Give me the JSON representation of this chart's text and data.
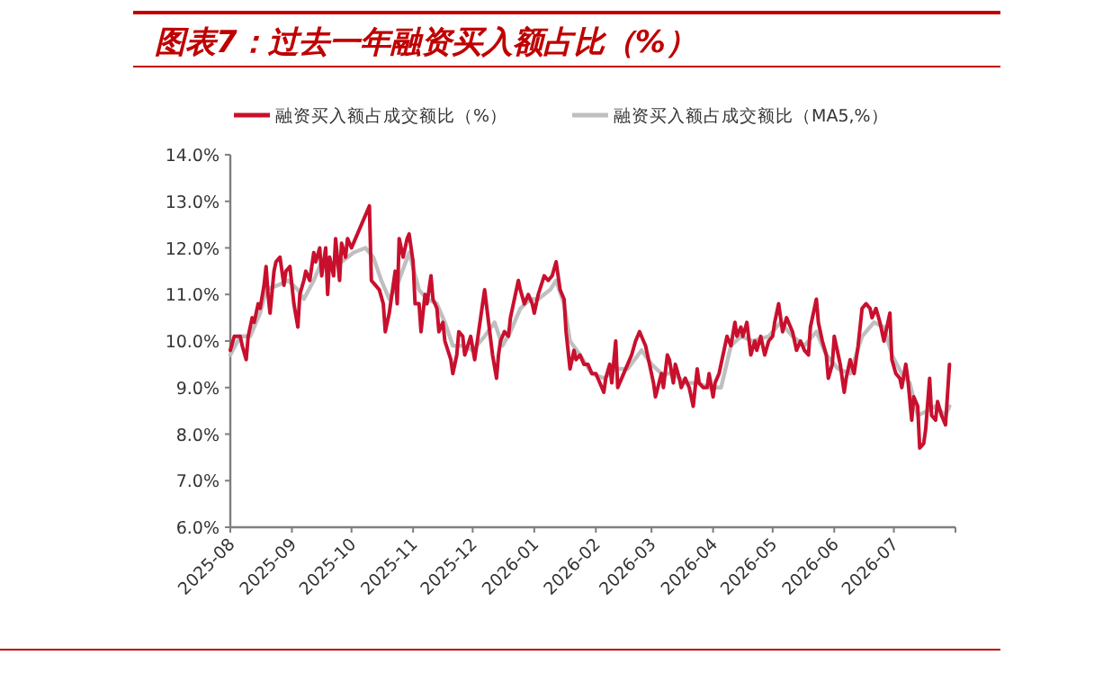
{
  "chart_data": {
    "type": "line",
    "title": "图表7：过去一年融资买入额占比（%）",
    "legend": "top",
    "line_style": "solid",
    "xlim": [
      "2025-08-01",
      "2026-08-01"
    ],
    "xticks": [
      "2025-08",
      "2025-09",
      "2025-10",
      "2025-11",
      "2025-12",
      "2026-01",
      "2026-02",
      "2026-03",
      "2026-04",
      "2026-05",
      "2026-06",
      "2026-07"
    ],
    "ylim": [
      6,
      14
    ],
    "yticks": [
      {
        "value": 6,
        "label": "6.0%"
      },
      {
        "value": 7,
        "label": "7.0%"
      },
      {
        "value": 8,
        "label": "8.0%"
      },
      {
        "value": 9,
        "label": "9.0%"
      },
      {
        "value": 10,
        "label": "10.0%"
      },
      {
        "value": 11,
        "label": "11.0%"
      },
      {
        "value": 12,
        "label": "12.0%"
      },
      {
        "value": 13,
        "label": "13.0%"
      },
      {
        "value": 14,
        "label": "14.0%"
      }
    ],
    "series": [
      {
        "name": "融资买入额占成交额比（%）",
        "color": "#c8102e",
        "x": [
          "2025-08-01",
          "2025-08-03",
          "2025-08-06",
          "2025-08-07",
          "2025-08-09",
          "2025-08-10",
          "2025-08-12",
          "2025-08-13",
          "2025-08-15",
          "2025-08-16",
          "2025-08-18",
          "2025-08-19",
          "2025-08-20",
          "2025-08-21",
          "2025-08-23",
          "2025-08-24",
          "2025-08-26",
          "2025-08-28",
          "2025-08-29",
          "2025-08-31",
          "2025-09-02",
          "2025-09-04",
          "2025-09-05",
          "2025-09-07",
          "2025-09-08",
          "2025-09-10",
          "2025-09-12",
          "2025-09-13",
          "2025-09-15",
          "2025-09-16",
          "2025-09-18",
          "2025-09-19",
          "2025-09-20",
          "2025-09-22",
          "2025-09-23",
          "2025-09-25",
          "2025-09-26",
          "2025-09-28",
          "2025-09-29",
          "2025-10-01",
          "2025-10-03",
          "2025-10-06",
          "2025-10-10",
          "2025-10-11",
          "2025-10-13",
          "2025-10-15",
          "2025-10-17",
          "2025-10-18",
          "2025-10-20",
          "2025-10-21",
          "2025-10-23",
          "2025-10-24",
          "2025-10-25",
          "2025-10-27",
          "2025-10-29",
          "2025-10-30",
          "2025-11-01",
          "2025-11-02",
          "2025-11-04",
          "2025-11-05",
          "2025-11-07",
          "2025-11-08",
          "2025-11-10",
          "2025-11-11",
          "2025-11-13",
          "2025-11-14",
          "2025-11-16",
          "2025-11-17",
          "2025-11-20",
          "2025-11-21",
          "2025-11-23",
          "2025-11-24",
          "2025-11-26",
          "2025-11-27",
          "2025-11-30",
          "2025-12-02",
          "2025-12-04",
          "2025-12-06",
          "2025-12-07",
          "2025-12-09",
          "2025-12-11",
          "2025-12-13",
          "2025-12-14",
          "2025-12-15",
          "2025-12-17",
          "2025-12-19",
          "2025-12-20",
          "2025-12-22",
          "2025-12-24",
          "2025-12-25",
          "2025-12-27",
          "2025-12-29",
          "2025-12-31",
          "2026-01-01",
          "2026-01-03",
          "2026-01-06",
          "2026-01-08",
          "2026-01-10",
          "2026-01-12",
          "2026-01-14",
          "2026-01-16",
          "2026-01-17",
          "2026-01-19",
          "2026-01-21",
          "2026-01-22",
          "2026-01-24",
          "2026-01-26",
          "2026-01-28",
          "2026-01-30",
          "2026-02-01",
          "2026-02-03",
          "2026-02-05",
          "2026-02-06",
          "2026-02-08",
          "2026-02-09",
          "2026-02-11",
          "2026-02-12",
          "2026-02-14",
          "2026-02-17",
          "2026-02-19",
          "2026-02-21",
          "2026-02-23",
          "2026-02-26",
          "2026-02-28",
          "2026-03-02",
          "2026-03-03",
          "2026-03-06",
          "2026-03-07",
          "2026-03-09",
          "2026-03-10",
          "2026-03-12",
          "2026-03-13",
          "2026-03-15",
          "2026-03-16",
          "2026-03-18",
          "2026-03-20",
          "2026-03-22",
          "2026-03-24",
          "2026-03-25",
          "2026-03-27",
          "2026-03-29",
          "2026-03-30",
          "2026-04-01",
          "2026-04-02",
          "2026-04-04",
          "2026-04-06",
          "2026-04-08",
          "2026-04-10",
          "2026-04-12",
          "2026-04-13",
          "2026-04-15",
          "2026-04-16",
          "2026-04-18",
          "2026-04-20",
          "2026-04-22",
          "2026-04-23",
          "2026-04-25",
          "2026-04-27",
          "2026-04-29",
          "2026-05-01",
          "2026-05-02",
          "2026-05-04",
          "2026-05-06",
          "2026-05-08",
          "2026-05-09",
          "2026-05-11",
          "2026-05-13",
          "2026-05-15",
          "2026-05-17",
          "2026-05-19",
          "2026-05-20",
          "2026-05-23",
          "2026-05-24",
          "2026-05-26",
          "2026-05-28",
          "2026-05-29",
          "2026-05-31",
          "2026-06-01",
          "2026-06-03",
          "2026-06-04",
          "2026-06-06",
          "2026-06-07",
          "2026-06-09",
          "2026-06-11",
          "2026-06-13",
          "2026-06-15",
          "2026-06-17",
          "2026-06-19",
          "2026-06-20",
          "2026-06-22",
          "2026-06-24",
          "2026-06-26",
          "2026-06-27",
          "2026-06-29",
          "2026-06-30",
          "2026-07-02",
          "2026-07-04",
          "2026-07-05",
          "2026-07-07",
          "2026-07-08",
          "2026-07-10",
          "2026-07-11",
          "2026-07-13",
          "2026-07-14",
          "2026-07-16",
          "2026-07-17",
          "2026-07-19",
          "2026-07-20",
          "2026-07-22",
          "2026-07-23",
          "2026-07-25",
          "2026-07-26",
          "2026-07-27",
          "2026-07-29"
        ],
        "values": [
          9.8,
          10.1,
          10.1,
          9.9,
          9.6,
          10.1,
          10.5,
          10.4,
          10.8,
          10.7,
          11.2,
          11.6,
          11.0,
          10.6,
          11.5,
          11.7,
          11.8,
          11.2,
          11.5,
          11.6,
          10.8,
          10.3,
          11.0,
          11.3,
          11.5,
          11.3,
          11.9,
          11.7,
          12.0,
          11.4,
          12.0,
          11.0,
          11.8,
          11.4,
          12.2,
          11.3,
          12.1,
          11.8,
          12.2,
          12.0,
          12.2,
          12.5,
          12.9,
          11.3,
          11.2,
          11.1,
          10.8,
          10.2,
          10.6,
          10.9,
          11.5,
          10.8,
          12.2,
          11.8,
          12.2,
          12.3,
          11.7,
          10.8,
          10.8,
          10.2,
          11.0,
          10.8,
          11.4,
          10.9,
          10.7,
          10.2,
          10.4,
          10.0,
          9.6,
          9.3,
          9.7,
          10.2,
          10.1,
          9.7,
          10.1,
          9.6,
          10.2,
          10.8,
          11.1,
          10.4,
          9.7,
          9.2,
          9.7,
          10.0,
          10.2,
          10.1,
          10.5,
          10.9,
          11.3,
          11.1,
          10.8,
          11.0,
          10.8,
          10.6,
          11.0,
          11.4,
          11.3,
          11.4,
          11.7,
          11.1,
          10.9,
          10.2,
          9.4,
          9.8,
          9.6,
          9.7,
          9.5,
          9.5,
          9.3,
          9.3,
          9.1,
          8.9,
          9.2,
          9.5,
          9.1,
          10.0,
          9.0,
          9.2,
          9.5,
          9.7,
          10.0,
          10.2,
          9.9,
          9.5,
          9.1,
          8.8,
          9.3,
          9.0,
          9.7,
          9.6,
          9.1,
          9.5,
          9.2,
          9.0,
          9.2,
          9.0,
          8.6,
          9.4,
          9.1,
          9.0,
          9.0,
          9.3,
          8.8,
          9.1,
          9.3,
          9.7,
          10.1,
          9.9,
          10.4,
          10.1,
          10.3,
          10.1,
          10.4,
          9.7,
          10.0,
          9.8,
          10.1,
          9.7,
          10.0,
          10.1,
          10.4,
          10.8,
          10.2,
          10.5,
          10.4,
          10.2,
          9.8,
          10.0,
          9.8,
          9.7,
          10.3,
          10.9,
          10.4,
          10.0,
          9.7,
          9.2,
          9.5,
          10.1,
          9.7,
          9.5,
          8.9,
          9.2,
          9.6,
          9.3,
          9.9,
          10.7,
          10.8,
          10.7,
          10.5,
          10.7,
          10.4,
          10.0,
          10.2,
          10.6,
          9.6,
          9.3,
          9.2,
          9.0,
          9.5,
          9.2,
          8.3,
          8.8,
          8.6,
          7.7,
          7.8,
          8.1,
          9.2,
          8.4,
          8.3,
          8.7,
          8.4,
          8.3,
          8.2,
          9.5
        ]
      },
      {
        "name": "融资买入额占成交额比（MA5,%）",
        "color": "#bfbfbf",
        "x": [
          "2025-08-01",
          "2025-08-06",
          "2025-08-11",
          "2025-08-16",
          "2025-08-19",
          "2025-08-25",
          "2025-08-30",
          "2025-09-04",
          "2025-09-07",
          "2025-09-12",
          "2025-09-16",
          "2025-09-21",
          "2025-09-26",
          "2025-10-02",
          "2025-10-08",
          "2025-10-12",
          "2025-10-16",
          "2025-10-20",
          "2025-10-24",
          "2025-10-30",
          "2025-11-04",
          "2025-11-08",
          "2025-11-13",
          "2025-11-17",
          "2025-11-21",
          "2025-11-26",
          "2025-12-01",
          "2025-12-07",
          "2025-12-12",
          "2025-12-16",
          "2025-12-20",
          "2025-12-25",
          "2025-12-30",
          "2026-01-03",
          "2026-01-09",
          "2026-01-12",
          "2026-01-16",
          "2026-01-19",
          "2026-01-24",
          "2026-01-30",
          "2026-02-05",
          "2026-02-11",
          "2026-02-17",
          "2026-02-24",
          "2026-03-01",
          "2026-03-06",
          "2026-03-12",
          "2026-03-18",
          "2026-03-24",
          "2026-03-30",
          "2026-04-05",
          "2026-04-10",
          "2026-04-15",
          "2026-04-21",
          "2026-04-29",
          "2026-05-05",
          "2026-05-11",
          "2026-05-17",
          "2026-05-23",
          "2026-05-28",
          "2026-06-03",
          "2026-06-09",
          "2026-06-15",
          "2026-06-21",
          "2026-06-26",
          "2026-06-30",
          "2026-07-05",
          "2026-07-09",
          "2026-07-13",
          "2026-07-18",
          "2026-07-22",
          "2026-07-27",
          "2026-07-29"
        ],
        "values": [
          9.7,
          10.1,
          10.1,
          10.6,
          11.1,
          11.2,
          11.3,
          11.1,
          10.9,
          11.3,
          11.7,
          11.6,
          11.7,
          11.9,
          12.0,
          11.8,
          11.3,
          10.9,
          11.2,
          11.9,
          11.1,
          10.9,
          10.8,
          10.4,
          9.9,
          9.9,
          9.8,
          10.1,
          10.4,
          9.9,
          10.2,
          10.7,
          10.9,
          10.9,
          11.1,
          11.3,
          10.8,
          10.0,
          9.7,
          9.3,
          9.2,
          9.4,
          9.4,
          9.8,
          9.5,
          9.3,
          9.3,
          9.1,
          9.1,
          9.0,
          9.0,
          9.9,
          10.1,
          10.0,
          10.1,
          10.4,
          10.1,
          9.9,
          10.2,
          9.7,
          9.4,
          9.3,
          10.1,
          10.4,
          10.3,
          9.7,
          9.3,
          9.1,
          8.4,
          8.5,
          8.6,
          8.4,
          8.6
        ]
      }
    ]
  }
}
